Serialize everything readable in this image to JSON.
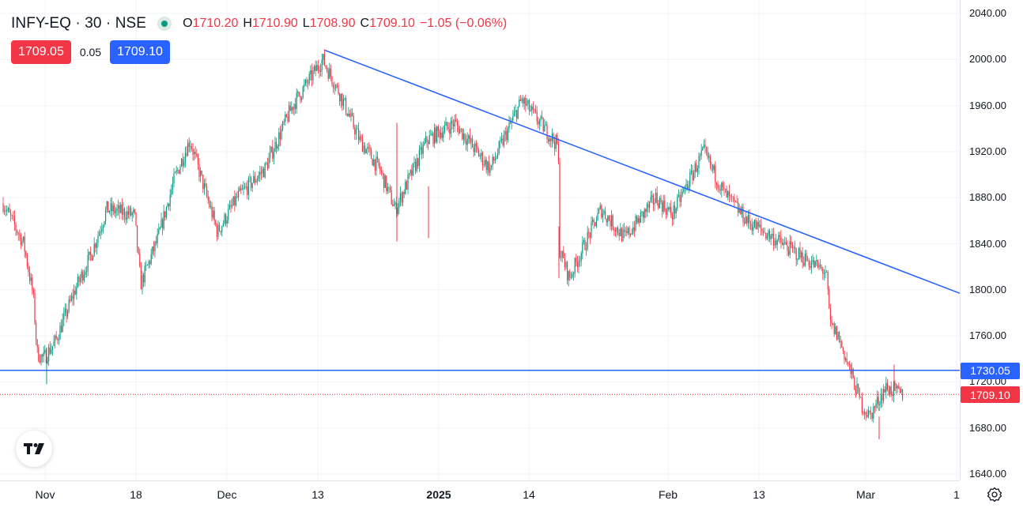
{
  "header": {
    "symbol_title": "INFY-EQ · 30 · NSE",
    "ohlc": {
      "o_label": "O",
      "o": "1710.20",
      "h_label": "H",
      "h": "1710.90",
      "l_label": "L",
      "l": "1708.90",
      "c_label": "C",
      "c": "1709.10",
      "change": "−1.05 (−0.06%)"
    },
    "sell_price": "1709.05",
    "spread": "0.05",
    "buy_price": "1709.10"
  },
  "price_axis": {
    "labels": [
      "2040.00",
      "2000.00",
      "1960.00",
      "1920.00",
      "1880.00",
      "1840.00",
      "1800.00",
      "1760.00",
      "1720.00",
      "1680.00",
      "1640.00"
    ],
    "horizontal_line_tag": "1730.05",
    "last_price_tag": "1709.10"
  },
  "time_axis": {
    "labels": [
      "Nov",
      "18",
      "Dec",
      "13",
      "2025",
      "14",
      "Feb",
      "13",
      "Mar",
      "1"
    ]
  },
  "colors": {
    "up": "#089981",
    "down": "#f23645",
    "drawing": "#2962ff",
    "grid": "#f0f3fa"
  },
  "drawings": {
    "trendline": {
      "from": {
        "date": "Dec 13",
        "price": 2008
      },
      "to": {
        "date": "Mar 1+",
        "price": 1797
      }
    },
    "horizontal_line_price": 1730.05
  },
  "chart_data": {
    "type": "candlestick",
    "title": "INFY-EQ · 30 · NSE",
    "ylim": [
      1630,
      2050
    ],
    "path_keypoints": [
      {
        "x": "Oct 28",
        "y": 1875
      },
      {
        "x": "Oct 30",
        "y": 1840
      },
      {
        "x": "Nov 1",
        "y": 1795
      },
      {
        "x": "Nov 4",
        "y": 1745
      },
      {
        "x": "Nov 5",
        "y": 1740
      },
      {
        "x": "Nov 7",
        "y": 1755
      },
      {
        "x": "Nov 11",
        "y": 1800
      },
      {
        "x": "Nov 13",
        "y": 1830
      },
      {
        "x": "Nov 15",
        "y": 1870
      },
      {
        "x": "Nov 20",
        "y": 1865
      },
      {
        "x": "Nov 22",
        "y": 1805
      },
      {
        "x": "Nov 25",
        "y": 1845
      },
      {
        "x": "Nov 27",
        "y": 1895
      },
      {
        "x": "Nov 29",
        "y": 1930
      },
      {
        "x": "Dec 2",
        "y": 1880
      },
      {
        "x": "Dec 3",
        "y": 1850
      },
      {
        "x": "Dec 6",
        "y": 1880
      },
      {
        "x": "Dec 9",
        "y": 1905
      },
      {
        "x": "Dec 11",
        "y": 1960
      },
      {
        "x": "Dec 13",
        "y": 2000
      },
      {
        "x": "Dec 17",
        "y": 1970
      },
      {
        "x": "Dec 20",
        "y": 1930
      },
      {
        "x": "Dec 24",
        "y": 1905
      },
      {
        "x": "Dec 30",
        "y": 1870
      },
      {
        "x": "Jan 2",
        "y": 1930
      },
      {
        "x": "Jan 6",
        "y": 1945
      },
      {
        "x": "Jan 9",
        "y": 1905
      },
      {
        "x": "Jan 13",
        "y": 1965
      },
      {
        "x": "Jan 17",
        "y": 1925
      },
      {
        "x": "Jan 17b",
        "y": 1835
      },
      {
        "x": "Jan 20",
        "y": 1810
      },
      {
        "x": "Jan 23",
        "y": 1870
      },
      {
        "x": "Jan 27",
        "y": 1845
      },
      {
        "x": "Jan 30",
        "y": 1880
      },
      {
        "x": "Feb 4",
        "y": 1865
      },
      {
        "x": "Feb 6",
        "y": 1920
      },
      {
        "x": "Feb 10",
        "y": 1885
      },
      {
        "x": "Feb 12",
        "y": 1860
      },
      {
        "x": "Feb 17",
        "y": 1835
      },
      {
        "x": "Feb 20",
        "y": 1815
      },
      {
        "x": "Feb 21",
        "y": 1770
      },
      {
        "x": "Feb 25",
        "y": 1760
      },
      {
        "x": "Feb 26",
        "y": 1700
      },
      {
        "x": "Feb 28",
        "y": 1690
      },
      {
        "x": "Mar 3",
        "y": 1715
      },
      {
        "x": "Mar 4",
        "y": 1709.1
      }
    ]
  }
}
